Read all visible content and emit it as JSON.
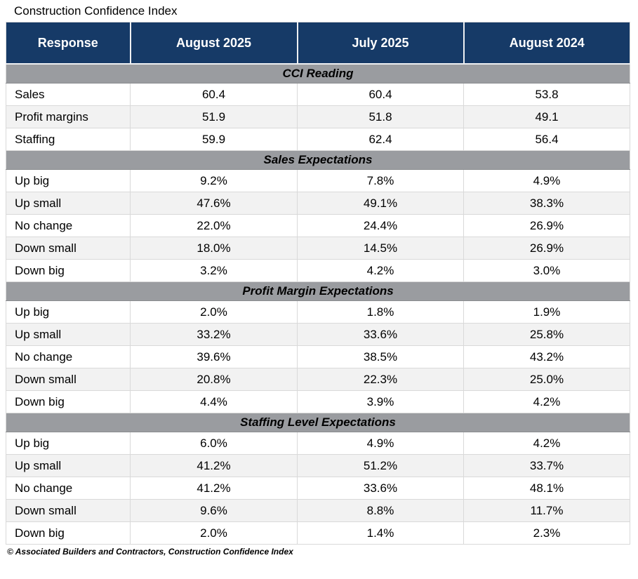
{
  "page": {
    "title": "Construction Confidence Index",
    "footer": "© Associated Builders and Contractors, Construction Confidence Index"
  },
  "colors": {
    "header_bg": "#163a67",
    "header_text": "#ffffff",
    "section_bg": "#9a9ca0",
    "row_alt_bg": "#f2f2f2",
    "border": "#d9d9d9"
  },
  "chart_data": {
    "type": "table",
    "title": "Construction Confidence Index",
    "columns": [
      "Response",
      "August 2025",
      "July 2025",
      "August 2024"
    ],
    "sections": [
      {
        "label": "CCI Reading",
        "rows": [
          [
            "Sales",
            "60.4",
            "60.4",
            "53.8"
          ],
          [
            "Profit margins",
            "51.9",
            "51.8",
            "49.1"
          ],
          [
            "Staffing",
            "59.9",
            "62.4",
            "56.4"
          ]
        ]
      },
      {
        "label": "Sales Expectations",
        "rows": [
          [
            "Up big",
            "9.2%",
            "7.8%",
            "4.9%"
          ],
          [
            "Up small",
            "47.6%",
            "49.1%",
            "38.3%"
          ],
          [
            "No change",
            "22.0%",
            "24.4%",
            "26.9%"
          ],
          [
            "Down small",
            "18.0%",
            "14.5%",
            "26.9%"
          ],
          [
            "Down big",
            "3.2%",
            "4.2%",
            "3.0%"
          ]
        ]
      },
      {
        "label": "Profit Margin Expectations",
        "rows": [
          [
            "Up big",
            "2.0%",
            "1.8%",
            "1.9%"
          ],
          [
            "Up small",
            "33.2%",
            "33.6%",
            "25.8%"
          ],
          [
            "No change",
            "39.6%",
            "38.5%",
            "43.2%"
          ],
          [
            "Down small",
            "20.8%",
            "22.3%",
            "25.0%"
          ],
          [
            "Down big",
            "4.4%",
            "3.9%",
            "4.2%"
          ]
        ]
      },
      {
        "label": "Staffing Level Expectations",
        "rows": [
          [
            "Up big",
            "6.0%",
            "4.9%",
            "4.2%"
          ],
          [
            "Up small",
            "41.2%",
            "51.2%",
            "33.7%"
          ],
          [
            "No change",
            "41.2%",
            "33.6%",
            "48.1%"
          ],
          [
            "Down small",
            "9.6%",
            "8.8%",
            "11.7%"
          ],
          [
            "Down big",
            "2.0%",
            "1.4%",
            "2.3%"
          ]
        ]
      }
    ],
    "footer": "© Associated Builders and Contractors, Construction Confidence Index"
  }
}
